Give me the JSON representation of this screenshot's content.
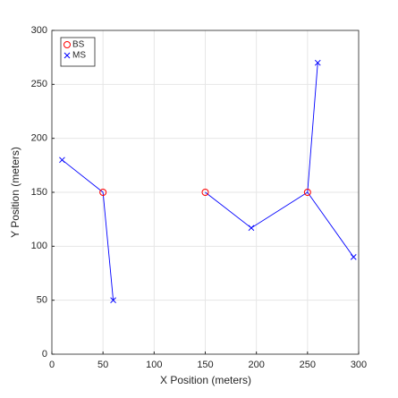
{
  "chart_data": {
    "type": "scatter",
    "x_label": "X Position (meters)",
    "y_label": "Y Position (meters)",
    "xlim": [
      0,
      300
    ],
    "ylim": [
      0,
      300
    ],
    "xticks": [
      0,
      50,
      100,
      150,
      200,
      250,
      300
    ],
    "yticks": [
      0,
      50,
      100,
      150,
      200,
      250,
      300
    ],
    "grid": true,
    "legend": "upper-left",
    "series": [
      {
        "name": "BS",
        "color": "#ff0000",
        "marker": "circle",
        "x": [
          50,
          150,
          250
        ],
        "y": [
          150,
          150,
          150
        ]
      },
      {
        "name": "MS",
        "color": "#0000ff",
        "marker": "x",
        "x": [
          10,
          60,
          195,
          260,
          295
        ],
        "y": [
          180,
          50,
          117,
          270,
          90
        ]
      }
    ],
    "links": {
      "color": "#0000ff",
      "x": [
        10,
        50,
        60,
        null,
        150,
        195,
        250,
        null,
        250,
        260,
        null,
        250,
        295
      ],
      "y": [
        180,
        150,
        50,
        null,
        150,
        117,
        150,
        null,
        150,
        270,
        null,
        150,
        90
      ]
    }
  }
}
